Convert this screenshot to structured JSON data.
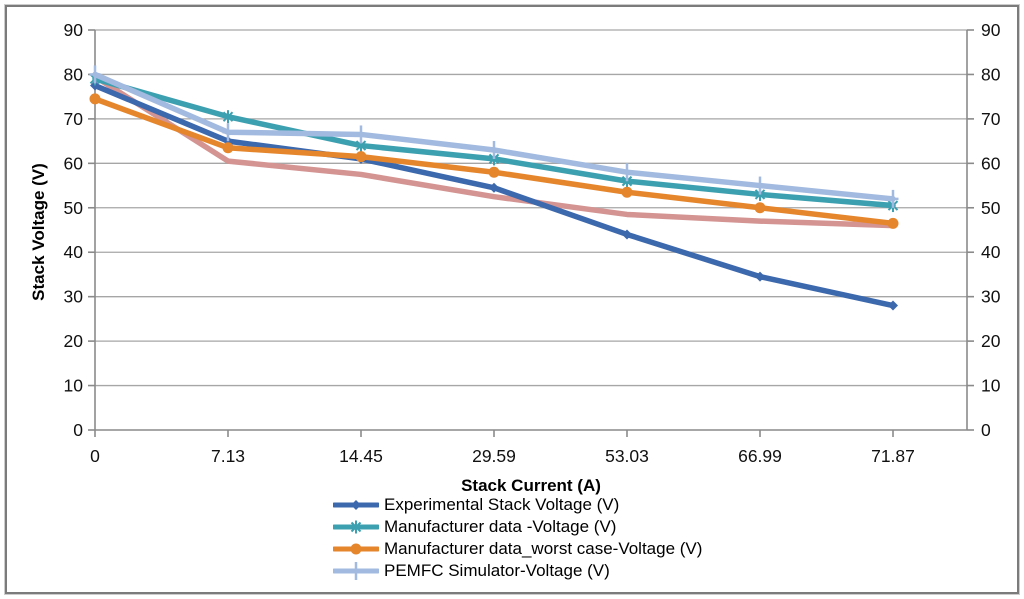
{
  "figure": {
    "background": "#FFFFFF",
    "border_color": "#7B7B7B"
  },
  "chart_data": {
    "type": "line",
    "title": "",
    "xlabel": "Stack Current (A)",
    "ylabel": "Stack Voltage (V)",
    "right_axis_mirror": true,
    "categories": [
      "0",
      "7.13",
      "14.45",
      "29.59",
      "53.03",
      "66.99",
      "71.87"
    ],
    "ylim": [
      0,
      90
    ],
    "yticks": [
      0,
      10,
      20,
      30,
      40,
      50,
      60,
      70,
      80,
      90
    ],
    "grid": "horizontal",
    "grid_color": "#A6A6A6",
    "axis_color": "#8A8A8A",
    "tick_label_color": "#111111",
    "legend_position": "bottom",
    "series": [
      {
        "name": "Experimental Stack Voltage (V)",
        "color": "#3C68AD",
        "marker": "diamond",
        "in_legend": true,
        "values": [
          77.5,
          65,
          61,
          54.5,
          44,
          34.5,
          28
        ]
      },
      {
        "name": "Manufacturer data -Voltage (V)",
        "color": "#3DA0B0",
        "marker": "star",
        "in_legend": true,
        "values": [
          79,
          70.5,
          64,
          61,
          56,
          53,
          50.5
        ]
      },
      {
        "name": "Manufacturer data_worst case-Voltage (V)",
        "color": "#E6862C",
        "marker": "circle",
        "in_legend": true,
        "values": [
          74.5,
          63.5,
          61.5,
          58,
          53.5,
          50,
          46.5
        ]
      },
      {
        "name": "PEMFC Simulator-Voltage (V)",
        "color": "#A2BADF",
        "marker": "plus",
        "in_legend": true,
        "values": [
          80,
          67,
          66.5,
          63,
          58,
          55,
          52
        ]
      },
      {
        "name": "unlabeled-series",
        "color": "#D39492",
        "marker": "none",
        "in_legend": false,
        "values": [
          79.5,
          60.5,
          57.5,
          52.5,
          48.5,
          47,
          46
        ]
      }
    ]
  }
}
